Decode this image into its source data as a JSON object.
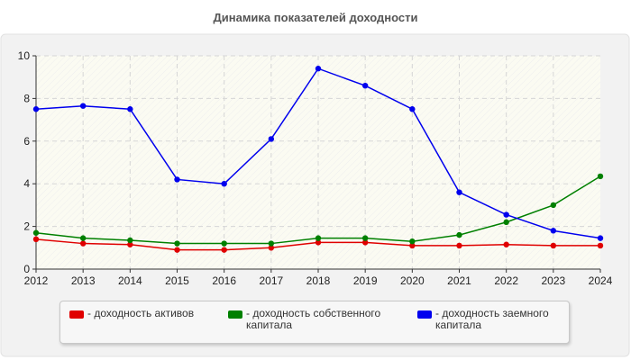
{
  "chart_data": {
    "type": "line",
    "title": "Динамика показателей доходности",
    "x": [
      2012,
      2013,
      2014,
      2015,
      2016,
      2017,
      2018,
      2019,
      2020,
      2021,
      2022,
      2023,
      2024
    ],
    "ylim": [
      0,
      10
    ],
    "yticks": [
      0,
      2,
      4,
      6,
      8,
      10
    ],
    "grid": true,
    "legend_position": "bottom",
    "series": [
      {
        "name": "- доходность активов",
        "color": "#e00000",
        "values": [
          1.4,
          1.2,
          1.15,
          0.9,
          0.9,
          1.0,
          1.25,
          1.25,
          1.1,
          1.1,
          1.15,
          1.1,
          1.1
        ]
      },
      {
        "name": "- доходность собственного капитала",
        "color": "#008000",
        "values": [
          1.7,
          1.45,
          1.35,
          1.2,
          1.2,
          1.2,
          1.45,
          1.45,
          1.3,
          1.6,
          2.2,
          3.0,
          4.35
        ]
      },
      {
        "name": "- доходность заемного капитала",
        "color": "#0000ee",
        "values": [
          7.5,
          7.65,
          7.5,
          4.2,
          4.0,
          6.1,
          9.4,
          8.6,
          7.5,
          3.6,
          2.55,
          1.8,
          1.45
        ]
      }
    ]
  }
}
